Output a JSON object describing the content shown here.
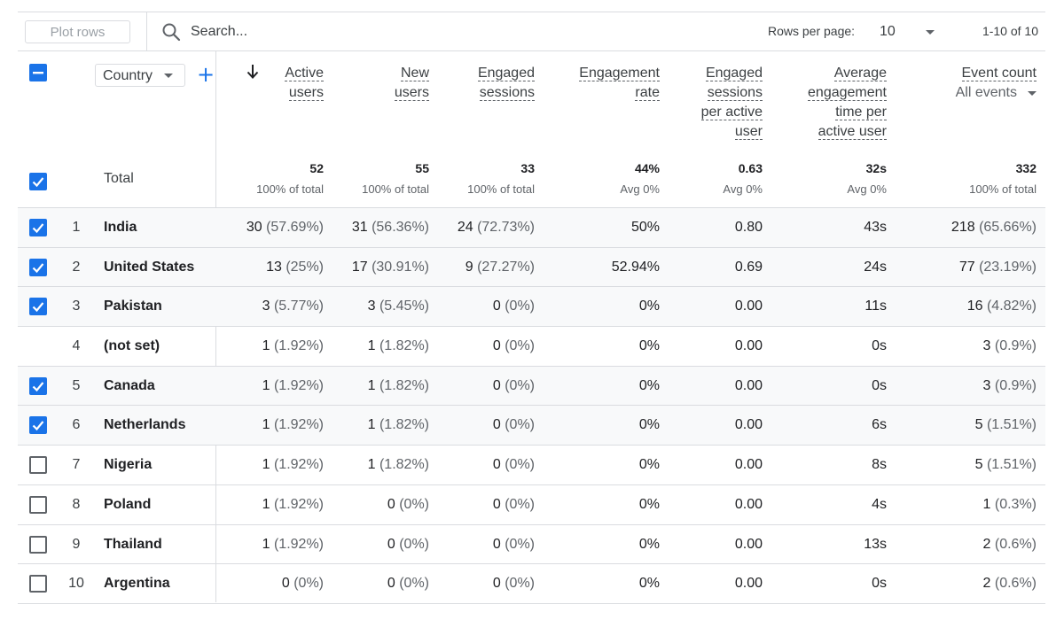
{
  "toolbar": {
    "plot_rows_label": "Plot rows",
    "search_placeholder": "Search...",
    "rows_per_page_label": "Rows per page:",
    "rows_per_page_value": "10",
    "range_label": "1-10 of 10"
  },
  "dimension": {
    "label": "Country"
  },
  "columns": [
    {
      "lines": [
        "Active",
        "users"
      ]
    },
    {
      "lines": [
        "New",
        "users"
      ]
    },
    {
      "lines": [
        "Engaged",
        "sessions"
      ]
    },
    {
      "lines": [
        "Engagement",
        "rate"
      ]
    },
    {
      "lines": [
        "Engaged",
        "sessions",
        "per active",
        "user"
      ]
    },
    {
      "lines": [
        "Average",
        "engagement",
        "time per",
        "active user"
      ]
    },
    {
      "lines": [
        "Event count"
      ],
      "sub": "All events"
    }
  ],
  "total": {
    "label": "Total",
    "values": [
      "52",
      "55",
      "33",
      "44%",
      "0.63",
      "32s",
      "332"
    ],
    "subs": [
      "100% of total",
      "100% of total",
      "100% of total",
      "Avg 0%",
      "Avg 0%",
      "Avg 0%",
      "100% of total"
    ]
  },
  "rows": [
    {
      "num": "1",
      "country": "India",
      "checked": true,
      "cells": [
        [
          "30",
          "(57.69%)"
        ],
        [
          "31",
          "(56.36%)"
        ],
        [
          "24",
          "(72.73%)"
        ],
        [
          "50%",
          ""
        ],
        [
          "0.80",
          ""
        ],
        [
          "43s",
          ""
        ],
        [
          "218",
          "(65.66%)"
        ]
      ]
    },
    {
      "num": "2",
      "country": "United States",
      "checked": true,
      "cells": [
        [
          "13",
          "(25%)"
        ],
        [
          "17",
          "(30.91%)"
        ],
        [
          "9",
          "(27.27%)"
        ],
        [
          "52.94%",
          ""
        ],
        [
          "0.69",
          ""
        ],
        [
          "24s",
          ""
        ],
        [
          "77",
          "(23.19%)"
        ]
      ]
    },
    {
      "num": "3",
      "country": "Pakistan",
      "checked": true,
      "cells": [
        [
          "3",
          "(5.77%)"
        ],
        [
          "3",
          "(5.45%)"
        ],
        [
          "0",
          "(0%)"
        ],
        [
          "0%",
          ""
        ],
        [
          "0.00",
          ""
        ],
        [
          "11s",
          ""
        ],
        [
          "16",
          "(4.82%)"
        ]
      ]
    },
    {
      "num": "4",
      "country": "(not set)",
      "checked": null,
      "cells": [
        [
          "1",
          "(1.92%)"
        ],
        [
          "1",
          "(1.82%)"
        ],
        [
          "0",
          "(0%)"
        ],
        [
          "0%",
          ""
        ],
        [
          "0.00",
          ""
        ],
        [
          "0s",
          ""
        ],
        [
          "3",
          "(0.9%)"
        ]
      ]
    },
    {
      "num": "5",
      "country": "Canada",
      "checked": true,
      "cells": [
        [
          "1",
          "(1.92%)"
        ],
        [
          "1",
          "(1.82%)"
        ],
        [
          "0",
          "(0%)"
        ],
        [
          "0%",
          ""
        ],
        [
          "0.00",
          ""
        ],
        [
          "0s",
          ""
        ],
        [
          "3",
          "(0.9%)"
        ]
      ]
    },
    {
      "num": "6",
      "country": "Netherlands",
      "checked": true,
      "cells": [
        [
          "1",
          "(1.92%)"
        ],
        [
          "1",
          "(1.82%)"
        ],
        [
          "0",
          "(0%)"
        ],
        [
          "0%",
          ""
        ],
        [
          "0.00",
          ""
        ],
        [
          "6s",
          ""
        ],
        [
          "5",
          "(1.51%)"
        ]
      ]
    },
    {
      "num": "7",
      "country": "Nigeria",
      "checked": false,
      "cells": [
        [
          "1",
          "(1.92%)"
        ],
        [
          "1",
          "(1.82%)"
        ],
        [
          "0",
          "(0%)"
        ],
        [
          "0%",
          ""
        ],
        [
          "0.00",
          ""
        ],
        [
          "8s",
          ""
        ],
        [
          "5",
          "(1.51%)"
        ]
      ]
    },
    {
      "num": "8",
      "country": "Poland",
      "checked": false,
      "cells": [
        [
          "1",
          "(1.92%)"
        ],
        [
          "0",
          "(0%)"
        ],
        [
          "0",
          "(0%)"
        ],
        [
          "0%",
          ""
        ],
        [
          "0.00",
          ""
        ],
        [
          "4s",
          ""
        ],
        [
          "1",
          "(0.3%)"
        ]
      ]
    },
    {
      "num": "9",
      "country": "Thailand",
      "checked": false,
      "cells": [
        [
          "1",
          "(1.92%)"
        ],
        [
          "0",
          "(0%)"
        ],
        [
          "0",
          "(0%)"
        ],
        [
          "0%",
          ""
        ],
        [
          "0.00",
          ""
        ],
        [
          "13s",
          ""
        ],
        [
          "2",
          "(0.6%)"
        ]
      ]
    },
    {
      "num": "10",
      "country": "Argentina",
      "checked": false,
      "cells": [
        [
          "0",
          "(0%)"
        ],
        [
          "0",
          "(0%)"
        ],
        [
          "0",
          "(0%)"
        ],
        [
          "0%",
          ""
        ],
        [
          "0.00",
          ""
        ],
        [
          "0s",
          ""
        ],
        [
          "2",
          "(0.6%)"
        ]
      ]
    }
  ],
  "colors": {
    "accent": "#1a73e8",
    "border": "#dadce0",
    "selected_row_bg": "#f8f9fa"
  },
  "icons": {
    "search": "search-icon",
    "sort": "arrow-down-icon",
    "add": "plus-icon"
  }
}
